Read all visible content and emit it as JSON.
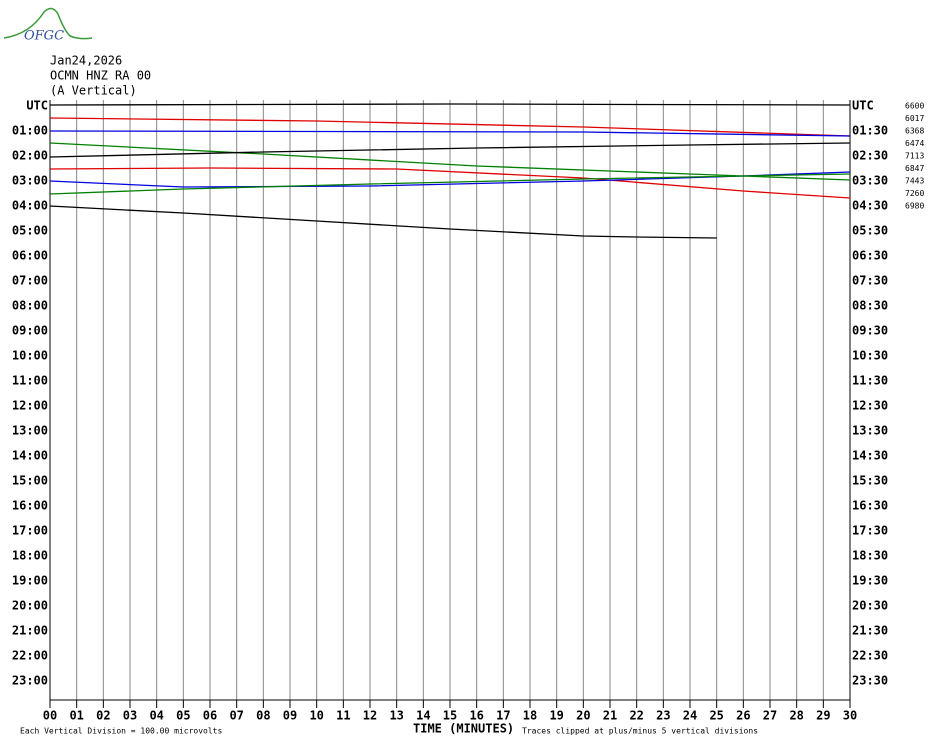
{
  "header": {
    "logo": "OFGC",
    "date": "Jan24,2026",
    "station": "OCMN HNZ RA 00",
    "component": "(A Vertical)"
  },
  "chart_data": {
    "type": "helicorder",
    "xlabel": "TIME (MINUTES)",
    "footer_left": "Each Vertical Division =  100.00 microvolts",
    "footer_right": "Traces clipped at plus/minus 5 vertical divisions",
    "xlim": [
      0,
      30
    ],
    "xticks": [
      {
        "value": 0,
        "label": "00"
      },
      {
        "value": 1,
        "label": "01"
      },
      {
        "value": 2,
        "label": "02"
      },
      {
        "value": 3,
        "label": "03"
      },
      {
        "value": 4,
        "label": "04"
      },
      {
        "value": 5,
        "label": "05"
      },
      {
        "value": 6,
        "label": "06"
      },
      {
        "value": 7,
        "label": "07"
      },
      {
        "value": 8,
        "label": "08"
      },
      {
        "value": 9,
        "label": "09"
      },
      10,
      11,
      12,
      13,
      14,
      15,
      16,
      17,
      18,
      19,
      20,
      21,
      22,
      23,
      24,
      25,
      26,
      27,
      28,
      29,
      30
    ],
    "left_labels": [
      "UTC",
      "01:00",
      "02:00",
      "03:00",
      "04:00",
      "05:00",
      "06:00",
      "07:00",
      "08:00",
      "09:00",
      "10:00",
      "11:00",
      "12:00",
      "13:00",
      "14:00",
      "15:00",
      "16:00",
      "17:00",
      "18:00",
      "19:00",
      "20:00",
      "21:00",
      "22:00",
      "23:00"
    ],
    "right_labels": [
      "UTC",
      "01:30",
      "02:30",
      "03:30",
      "04:30",
      "05:30",
      "06:30",
      "07:30",
      "08:30",
      "09:30",
      "10:30",
      "11:30",
      "12:30",
      "13:30",
      "14:30",
      "15:30",
      "16:30",
      "17:30",
      "18:30",
      "19:30",
      "20:30",
      "21:30",
      "22:30",
      "23:30"
    ],
    "traces": [
      {
        "label": "6600",
        "color": "#000000",
        "x": [
          0,
          15,
          30
        ],
        "values": [
          8,
          16,
          8
        ]
      },
      {
        "label": "6017",
        "color": "#e00000",
        "x": [
          0,
          10,
          20,
          30
        ],
        "values": [
          4,
          -20,
          -68,
          -140
        ]
      },
      {
        "label": "6368",
        "color": "#0000e0",
        "x": [
          0,
          20,
          30
        ],
        "values": [
          0,
          -8,
          -40
        ]
      },
      {
        "label": "6474",
        "color": "#008000",
        "x": [
          0,
          8,
          16,
          24,
          30
        ],
        "values": [
          4,
          -84,
          -180,
          -244,
          -292
        ]
      },
      {
        "label": "7113",
        "color": "#000000",
        "x": [
          0,
          8,
          16,
          24,
          30
        ],
        "values": [
          -8,
          32,
          64,
          88,
          104
        ]
      },
      {
        "label": "6847",
        "color": "#e00000",
        "x": [
          0,
          6,
          13,
          20,
          26,
          30
        ],
        "values": [
          -4,
          4,
          -4,
          -76,
          -180,
          -236
        ]
      },
      {
        "label": "7443",
        "color": "#0000e0",
        "x": [
          0,
          5,
          12,
          20,
          26,
          30
        ],
        "values": [
          0,
          -48,
          -40,
          0,
          40,
          72
        ]
      },
      {
        "label": "7260",
        "color": "#008000",
        "x": [
          0,
          5,
          12,
          20,
          26,
          30
        ],
        "values": [
          -4,
          36,
          76,
          116,
          140,
          156
        ]
      },
      {
        "label": "6980",
        "color": "#000000",
        "x": [
          0,
          5,
          10,
          15,
          20,
          22,
          25
        ],
        "values": [
          0,
          -56,
          -120,
          -184,
          -240,
          -248,
          -256
        ]
      }
    ]
  }
}
